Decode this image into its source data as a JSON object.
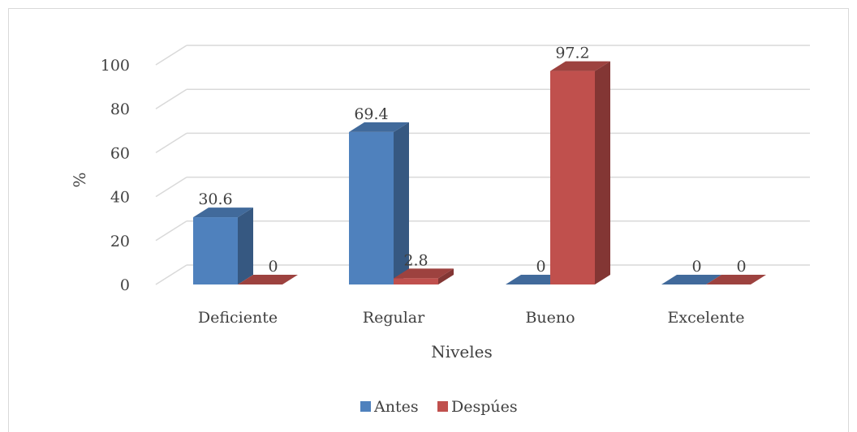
{
  "chart_data": {
    "type": "bar",
    "categories": [
      "Deficiente",
      "Regular",
      "Bueno",
      "Excelente"
    ],
    "series": [
      {
        "name": "Antes",
        "values": [
          30.6,
          69.4,
          0,
          0
        ],
        "color": "#4f81bd",
        "data_labels": [
          "30.6",
          "69.4",
          "0",
          "0"
        ]
      },
      {
        "name": "Despúes",
        "values": [
          0,
          2.8,
          97.2,
          0
        ],
        "color": "#c0504d",
        "data_labels": [
          "0",
          "2.8",
          "97.2",
          "0"
        ]
      }
    ],
    "yticks": [
      "0",
      "20",
      "40",
      "60",
      "80",
      "100"
    ],
    "ylim": [
      0,
      100
    ],
    "xlabel": "Niveles",
    "ylabel": "%",
    "grid": true,
    "legend_position": "bottom",
    "style": "3d-column"
  }
}
